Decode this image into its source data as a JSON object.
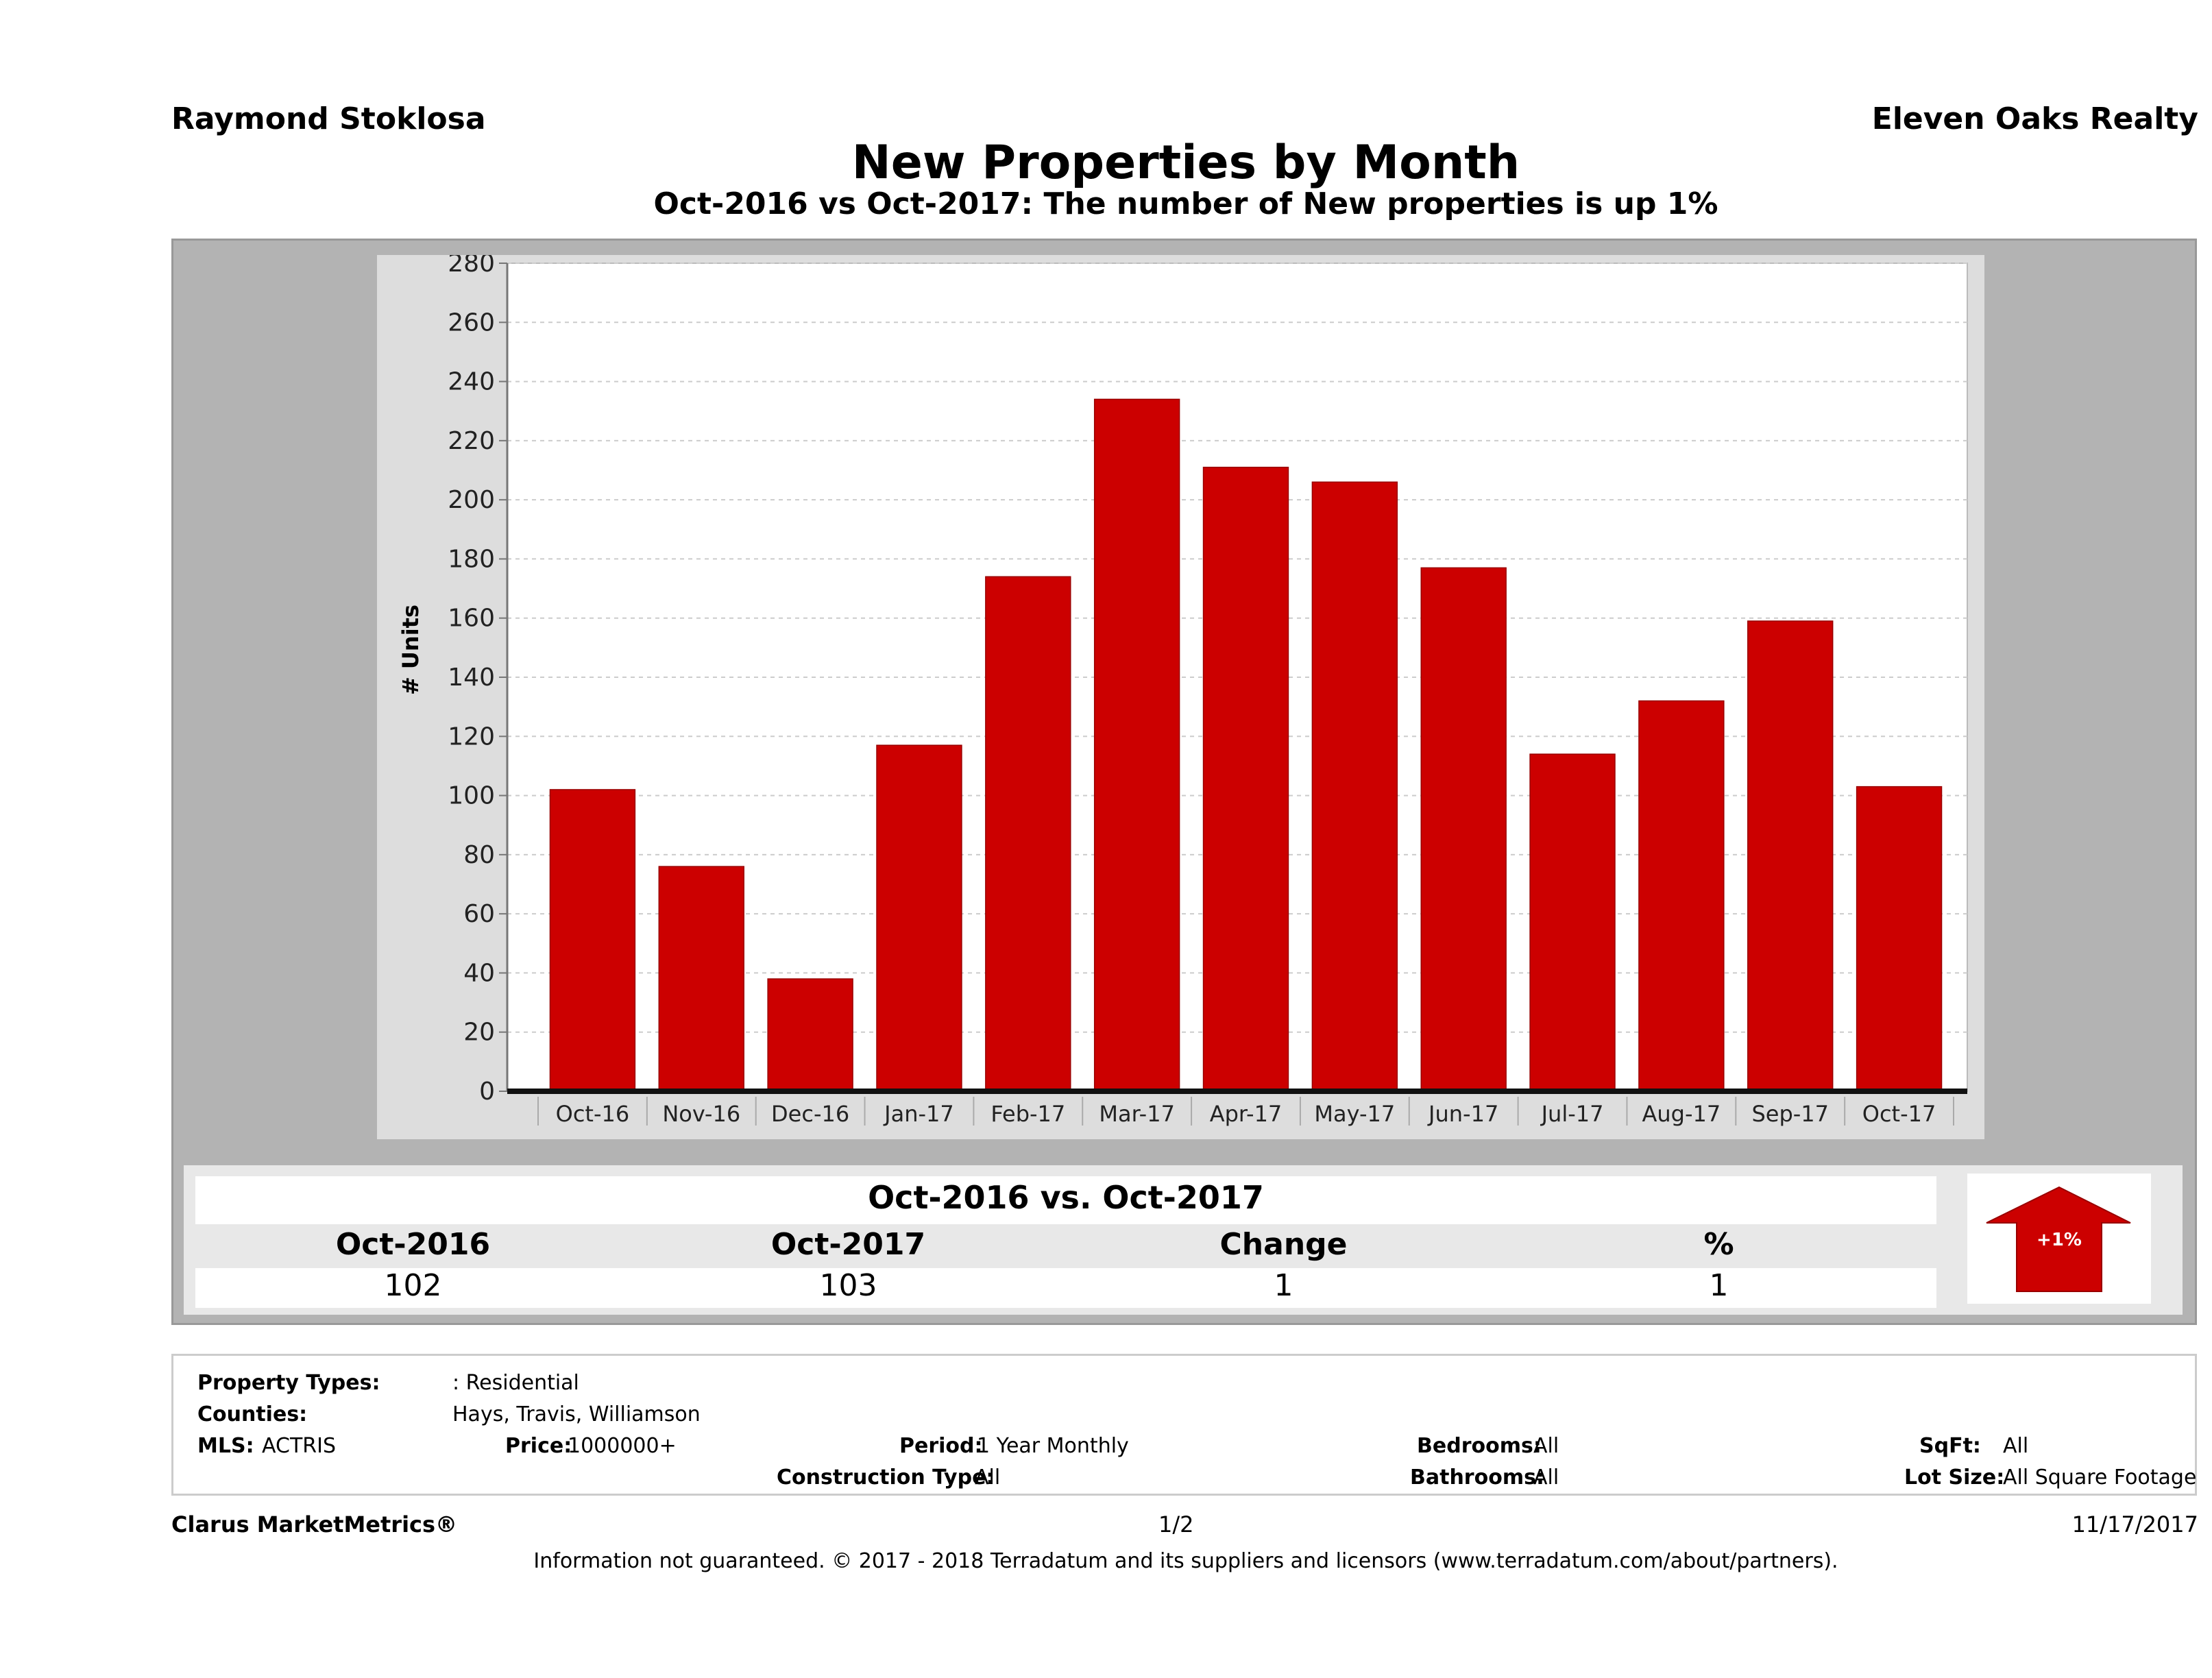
{
  "header": {
    "agent_name": "Raymond Stoklosa",
    "brokerage": "Eleven Oaks Realty",
    "title": "New Properties by Month",
    "subtitle": "Oct-2016 vs Oct-2017: The number of New  properties is up 1%"
  },
  "colors": {
    "bar": "#cc0000",
    "frame": "#b3b3b3",
    "plot_panel": "#dddddd",
    "gridline": "#cccccc"
  },
  "chart_data": {
    "type": "bar",
    "title": "New Properties by Month",
    "subtitle": "Oct-2016 vs Oct-2017: The number of New  properties is up 1%",
    "xlabel": "",
    "ylabel": "# Units",
    "ylim": [
      0,
      280
    ],
    "yticks": [
      0,
      20,
      40,
      60,
      80,
      100,
      120,
      140,
      160,
      180,
      200,
      220,
      240,
      260,
      280
    ],
    "grid": true,
    "legend": "none",
    "categories": [
      "Oct-16",
      "Nov-16",
      "Dec-16",
      "Jan-17",
      "Feb-17",
      "Mar-17",
      "Apr-17",
      "May-17",
      "Jun-17",
      "Jul-17",
      "Aug-17",
      "Sep-17",
      "Oct-17"
    ],
    "values": [
      102,
      76,
      38,
      117,
      174,
      234,
      211,
      206,
      177,
      114,
      132,
      159,
      103
    ]
  },
  "summary": {
    "title": "Oct-2016 vs. Oct-2017",
    "headers": [
      "Oct-2016",
      "Oct-2017",
      "Change",
      "%"
    ],
    "values": [
      "102",
      "103",
      "1",
      "1"
    ],
    "arrow_label": "+1%",
    "arrow_direction": "up"
  },
  "criteria": {
    "property_types_label": "Property Types:",
    "property_types_value": ": Residential",
    "counties_label": "Counties:",
    "counties_value": "Hays, Travis, Williamson",
    "mls_label": "MLS:",
    "mls_value": "ACTRIS",
    "price_label": "Price:",
    "price_value": "1000000+",
    "period_label": "Period:",
    "period_value": "1 Year Monthly",
    "construction_label": "Construction Type:",
    "construction_value": "All",
    "bedrooms_label": "Bedrooms:",
    "bedrooms_value": "All",
    "bathrooms_label": "Bathrooms:",
    "bathrooms_value": "All",
    "sqft_label": "SqFt:",
    "sqft_value": "All",
    "lotsize_label": "Lot Size:",
    "lotsize_value": "All Square Footage"
  },
  "footer": {
    "product": "Clarus MarketMetrics®",
    "page": "1/2",
    "date": "11/17/2017",
    "disclaimer": "Information not guaranteed. © 2017 - 2018 Terradatum and its suppliers and licensors (www.terradatum.com/about/partners)."
  }
}
